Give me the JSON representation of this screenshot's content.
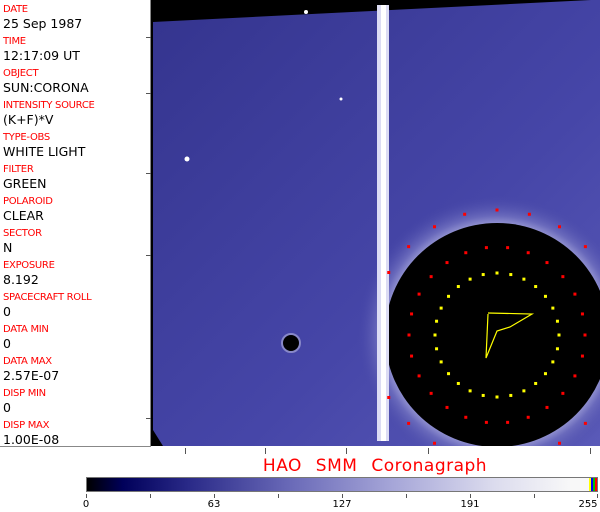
{
  "header_fields": [
    {
      "label": "DATE",
      "value": "25 Sep 1987"
    },
    {
      "label": "TIME",
      "value": "12:17:09 UT"
    },
    {
      "label": "OBJECT",
      "value": "SUN:CORONA"
    },
    {
      "label": "INTENSITY SOURCE",
      "value": "(K+F)*V"
    },
    {
      "label": "TYPE-OBS",
      "value": "WHITE LIGHT"
    },
    {
      "label": "FILTER",
      "value": "GREEN"
    },
    {
      "label": "POLAROID",
      "value": "CLEAR"
    },
    {
      "label": "SECTOR",
      "value": "N"
    },
    {
      "label": "EXPOSURE",
      "value": "8.192"
    },
    {
      "label": "SPACECRAFT ROLL",
      "value": "0"
    },
    {
      "label": "DATA MIN",
      "value": "0"
    },
    {
      "label": "DATA MAX",
      "value": "2.57E-07"
    },
    {
      "label": "DISP MIN",
      "value": "0"
    },
    {
      "label": "DISP MAX",
      "value": "1.00E-08"
    }
  ],
  "title": "HAO  SMM Coronagraph",
  "colorbar": {
    "labels": [
      "0",
      "63",
      "127",
      "191",
      "255"
    ],
    "end_colors": [
      "#ffff00",
      "#0000ff",
      "#00c000",
      "#ff0000"
    ]
  },
  "colors": {
    "label": "#ff0000",
    "image_blue": "#3c3ca0",
    "marker_red": "#ff0000",
    "marker_yellow": "#ffff00"
  }
}
